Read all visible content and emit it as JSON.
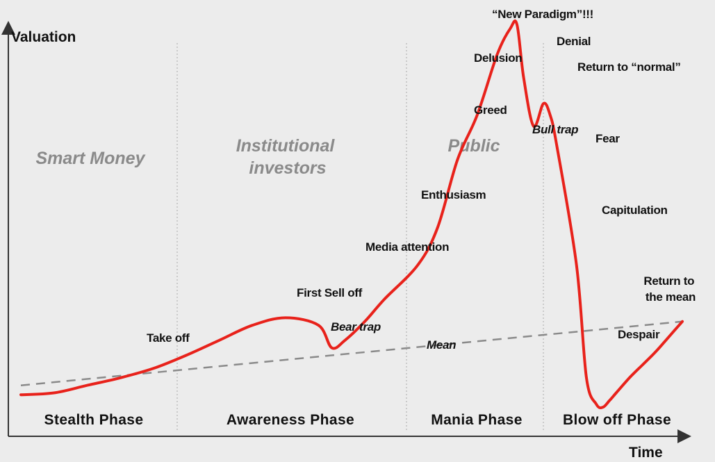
{
  "chart_data": {
    "type": "line",
    "ylabel": "Valuation",
    "xlabel": "Time",
    "phases": [
      "Stealth Phase",
      "Awareness Phase",
      "Mania Phase",
      "Blow off Phase"
    ],
    "participants": [
      "Smart Money",
      "Institutional investors",
      "Public"
    ],
    "series": [
      {
        "kind": "valuation",
        "x": [
          0,
          5,
          10,
          15,
          20,
          25,
          30,
          35,
          40,
          45,
          47,
          49,
          52,
          55,
          60,
          63,
          66,
          69,
          72,
          74,
          75,
          76,
          77.5,
          79,
          80,
          81,
          84,
          85.5,
          87,
          88,
          89,
          90,
          92,
          94,
          96,
          98,
          100
        ],
        "y": [
          5.5,
          6,
          8,
          10,
          12.5,
          16,
          20,
          24,
          26,
          24,
          18,
          20,
          25,
          31,
          40,
          50,
          68,
          80,
          96,
          103,
          104,
          90,
          77,
          83,
          80,
          72,
          40,
          10,
          3,
          2.2,
          4,
          6,
          10,
          13.5,
          17,
          21,
          25
        ]
      },
      {
        "name": "Mean",
        "kind": "mean",
        "x": [
          0,
          100
        ],
        "y": [
          8,
          25
        ]
      }
    ],
    "annotations": [
      {
        "text": "Take off",
        "x": 21,
        "y": 10.5
      },
      {
        "text": "First Sell off",
        "x": 45,
        "y": 26
      },
      {
        "text": "Bear trap",
        "x": 47,
        "y": 18
      },
      {
        "text": "Media attention",
        "x": 60,
        "y": 40
      },
      {
        "text": "Enthusiasm",
        "x": 66,
        "y": 68
      },
      {
        "text": "Greed",
        "x": 69,
        "y": 80
      },
      {
        "text": "Delusion",
        "x": 72,
        "y": 96
      },
      {
        "text": "“New Paradigm”!!!",
        "x": 75,
        "y": 104
      },
      {
        "text": "Denial",
        "x": 76,
        "y": 90
      },
      {
        "text": "Bull trap",
        "x": 77.5,
        "y": 77
      },
      {
        "text": "Return to “normal”",
        "x": 79,
        "y": 83
      },
      {
        "text": "Fear",
        "x": 81,
        "y": 72
      },
      {
        "text": "Capitulation",
        "x": 84,
        "y": 40
      },
      {
        "text": "Despair",
        "x": 90,
        "y": 6
      },
      {
        "text": "Return to the mean",
        "x": 100,
        "y": 25
      }
    ],
    "grid": false,
    "legend": "none"
  },
  "colors": {
    "curve": "#e8221b",
    "mean": "#8a8a8a",
    "axis": "#333333",
    "divider": "#b5b5b5",
    "group_text": "#8a8a8a",
    "background": "#ececec"
  }
}
